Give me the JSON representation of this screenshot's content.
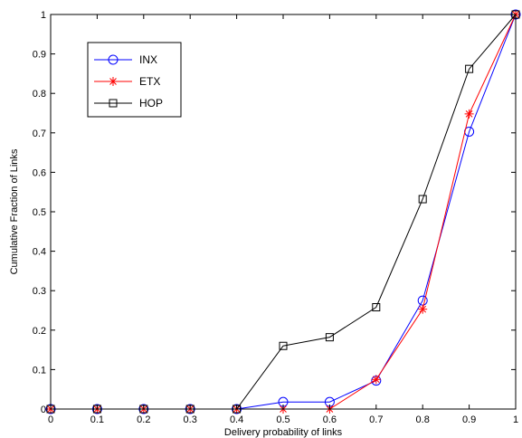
{
  "chart_data": {
    "type": "line",
    "title": "",
    "xlabel": "Delivery probability of links",
    "ylabel": "Cumulative Fraction of Links",
    "xlim": [
      0,
      1
    ],
    "ylim": [
      0,
      1
    ],
    "xticks": [
      "0",
      "0.1",
      "0.2",
      "0.3",
      "0.4",
      "0.5",
      "0.6",
      "0.7",
      "0.8",
      "0.9",
      "1"
    ],
    "yticks": [
      "0",
      "0.1",
      "0.2",
      "0.3",
      "0.4",
      "0.5",
      "0.6",
      "0.7",
      "0.8",
      "0.9",
      "1"
    ],
    "grid": false,
    "legend_position": "top-left",
    "x": [
      0,
      0.1,
      0.2,
      0.3,
      0.4,
      0.5,
      0.6,
      0.7,
      0.8,
      0.9,
      1.0
    ],
    "series": [
      {
        "name": "INX",
        "color": "#0000ff",
        "marker": "circle",
        "values": [
          0,
          0,
          0,
          0,
          0,
          0.018,
          0.018,
          0.072,
          0.275,
          0.703,
          1.0
        ]
      },
      {
        "name": "ETX",
        "color": "#ff0000",
        "marker": "asterisk",
        "values": [
          0,
          0,
          0,
          0,
          0,
          0,
          0,
          0.075,
          0.253,
          0.748,
          1.0
        ]
      },
      {
        "name": "HOP",
        "color": "#000000",
        "marker": "square",
        "values": [
          0,
          0,
          0,
          0,
          0,
          0.16,
          0.182,
          0.258,
          0.532,
          0.862,
          1.0
        ]
      }
    ]
  }
}
